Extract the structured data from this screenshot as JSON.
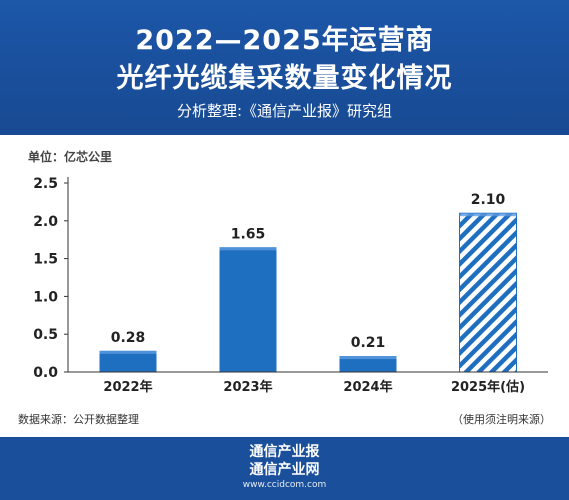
{
  "header": {
    "title_line1": "2022—2025年运营商",
    "title_line2": "光纤光缆集采数量变化情况",
    "subtitle": "分析整理:《通信产业报》研究组"
  },
  "chart_data": {
    "type": "bar",
    "unit_label": "单位：亿芯公里",
    "categories": [
      "2022年",
      "2023年",
      "2024年",
      "2025年(估)"
    ],
    "values": [
      0.28,
      1.65,
      0.21,
      2.1
    ],
    "value_labels": [
      "0.28",
      "1.65",
      "0.21",
      "2.10"
    ],
    "estimated": [
      false,
      false,
      false,
      true
    ],
    "ylim": [
      0,
      2.5
    ],
    "yticks": [
      "0.0",
      "0.5",
      "1.0",
      "1.5",
      "2.0",
      "2.5"
    ],
    "bar_color": "#1f6fc0",
    "estimate_pattern": "diagonal-hatch",
    "grid": false
  },
  "notes": {
    "source": "数据来源：公开数据整理",
    "credit": "（使用须注明来源）"
  },
  "footer": {
    "brand_line1": "通信产业报",
    "brand_line2": "通信产业网",
    "site": "www.ccidcom.com"
  },
  "colors": {
    "header_bg": "#1a4f9c",
    "footer_bg": "#1a4f9c",
    "bar": "#1f6fc0"
  }
}
